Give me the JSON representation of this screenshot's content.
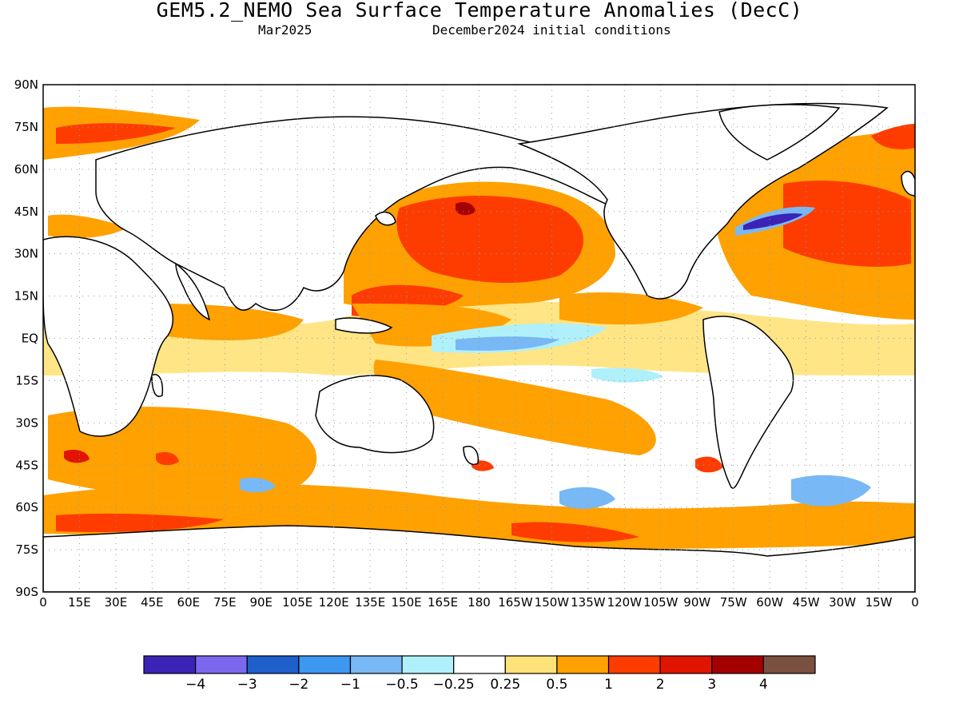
{
  "title": "GEM5.2_NEMO Sea Surface Temperature Anomalies (DecC)",
  "subtitle_left": "Mar2025",
  "subtitle_right": "December2024 initial conditions",
  "lat_labels": [
    "90N",
    "75N",
    "60N",
    "45N",
    "30N",
    "15N",
    "EQ",
    "15S",
    "30S",
    "45S",
    "60S",
    "75S",
    "90S"
  ],
  "lon_labels": [
    "0",
    "15E",
    "30E",
    "45E",
    "60E",
    "75E",
    "90E",
    "105E",
    "120E",
    "135E",
    "150E",
    "165E",
    "180",
    "165W",
    "150W",
    "135W",
    "120W",
    "105W",
    "90W",
    "75W",
    "60W",
    "45W",
    "30W",
    "15W",
    "0"
  ],
  "colorbar": {
    "colors": [
      "#3b23b5",
      "#7b68ee",
      "#1e5fcc",
      "#3c98f0",
      "#78b8f5",
      "#b0f0fa",
      "#ffffff",
      "#ffe279",
      "#ffa100",
      "#ff3c00",
      "#e11400",
      "#a50000",
      "#7a5040"
    ],
    "labels": [
      "−4",
      "−3",
      "−2",
      "−1",
      "−0.5",
      "−0.25",
      "0.25",
      "0.5",
      "1",
      "2",
      "3",
      "4"
    ]
  }
}
